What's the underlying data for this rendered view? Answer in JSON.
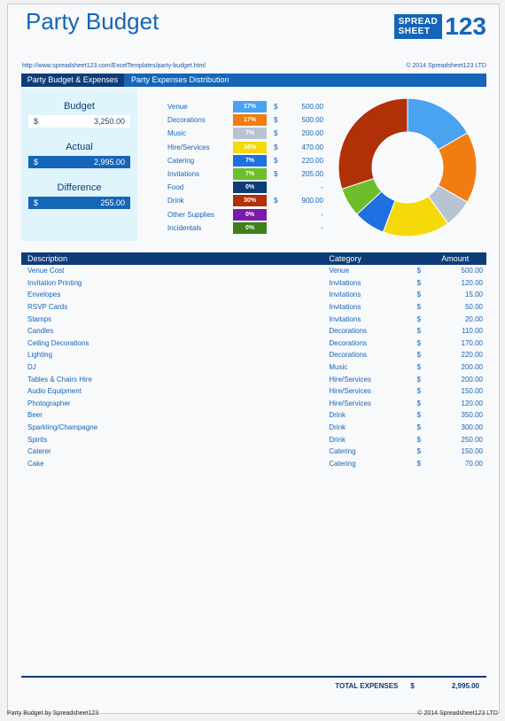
{
  "title": "Party Budget",
  "logo": {
    "line1": "SPREAD",
    "line2": "SHEET",
    "num": "123"
  },
  "url": "http://www.spreadsheet123.com/ExcelTemplates/party-budget.html",
  "copyright_top": "© 2014 Spreadsheet123 LTD",
  "tabs": {
    "left": "Party Budget & Expenses",
    "right": "Party Expenses Distribution"
  },
  "summary": {
    "budget_label": "Budget",
    "budget_cur": "$",
    "budget_value": "3,250.00",
    "actual_label": "Actual",
    "actual_cur": "$",
    "actual_value": "2,995.00",
    "difference_label": "Difference",
    "difference_cur": "$",
    "difference_value": "255.00"
  },
  "categories": [
    {
      "name": "Venue",
      "pct": "17%",
      "cur": "$",
      "amt": "500.00",
      "color": "#4aa3f0"
    },
    {
      "name": "Decorations",
      "pct": "17%",
      "cur": "$",
      "amt": "500.00",
      "color": "#f07c12"
    },
    {
      "name": "Music",
      "pct": "7%",
      "cur": "$",
      "amt": "200.00",
      "color": "#b8c4d4"
    },
    {
      "name": "Hire/Services",
      "pct": "16%",
      "cur": "$",
      "amt": "470.00",
      "color": "#f5d90a"
    },
    {
      "name": "Catering",
      "pct": "7%",
      "cur": "$",
      "amt": "220.00",
      "color": "#1e6fe0"
    },
    {
      "name": "Invitations",
      "pct": "7%",
      "cur": "$",
      "amt": "205.00",
      "color": "#6cbf2a"
    },
    {
      "name": "Food",
      "pct": "0%",
      "cur": "",
      "amt": "-",
      "color": "#0d3c78"
    },
    {
      "name": "Drink",
      "pct": "30%",
      "cur": "$",
      "amt": "900.00",
      "color": "#b03008"
    },
    {
      "name": "Other Supplies",
      "pct": "0%",
      "cur": "",
      "amt": "-",
      "color": "#7a1aa8"
    },
    {
      "name": "Incidentals",
      "pct": "0%",
      "cur": "",
      "amt": "-",
      "color": "#3f7f1a"
    }
  ],
  "chart_data": {
    "type": "pie",
    "title": "",
    "categories": [
      "Venue",
      "Decorations",
      "Music",
      "Hire/Services",
      "Catering",
      "Invitations",
      "Drink"
    ],
    "values": [
      500,
      500,
      200,
      470,
      220,
      205,
      900
    ],
    "colors": [
      "#4aa3f0",
      "#f07c12",
      "#b8c4d4",
      "#f5d90a",
      "#1e6fe0",
      "#6cbf2a",
      "#b03008"
    ]
  },
  "table": {
    "headers": [
      "Description",
      "Category",
      "Amount"
    ],
    "rows": [
      {
        "d": "Venue Cost",
        "c": "Venue",
        "cur": "$",
        "a": "500.00"
      },
      {
        "d": "Invitation Printing",
        "c": "Invitations",
        "cur": "$",
        "a": "120.00"
      },
      {
        "d": "Envelopes",
        "c": "Invitations",
        "cur": "$",
        "a": "15.00"
      },
      {
        "d": "RSVP Cards",
        "c": "Invitations",
        "cur": "$",
        "a": "50.00"
      },
      {
        "d": "Stamps",
        "c": "Invitations",
        "cur": "$",
        "a": "20.00"
      },
      {
        "d": "Candles",
        "c": "Decorations",
        "cur": "$",
        "a": "110.00"
      },
      {
        "d": "Ceiling Decorations",
        "c": "Decorations",
        "cur": "$",
        "a": "170.00"
      },
      {
        "d": "Lighting",
        "c": "Decorations",
        "cur": "$",
        "a": "220.00"
      },
      {
        "d": "DJ",
        "c": "Music",
        "cur": "$",
        "a": "200.00"
      },
      {
        "d": "Tables & Chairs Hire",
        "c": "Hire/Services",
        "cur": "$",
        "a": "200.00"
      },
      {
        "d": "Audio Equipment",
        "c": "Hire/Services",
        "cur": "$",
        "a": "150.00"
      },
      {
        "d": "Photographer",
        "c": "Hire/Services",
        "cur": "$",
        "a": "120.00"
      },
      {
        "d": "Beer",
        "c": "Drink",
        "cur": "$",
        "a": "350.00"
      },
      {
        "d": "Sparkling/Champagne",
        "c": "Drink",
        "cur": "$",
        "a": "300.00"
      },
      {
        "d": "Spirits",
        "c": "Drink",
        "cur": "$",
        "a": "250.00"
      },
      {
        "d": "Caterer",
        "c": "Catering",
        "cur": "$",
        "a": "150.00"
      },
      {
        "d": "Cake",
        "c": "Catering",
        "cur": "$",
        "a": "70.00"
      }
    ]
  },
  "totals": {
    "label": "TOTAL EXPENSES",
    "cur": "$",
    "value": "2,995.00"
  },
  "footer": {
    "left": "Party Budget by Spreadsheet123",
    "right": "© 2014 Spreadsheet123 LTD"
  }
}
